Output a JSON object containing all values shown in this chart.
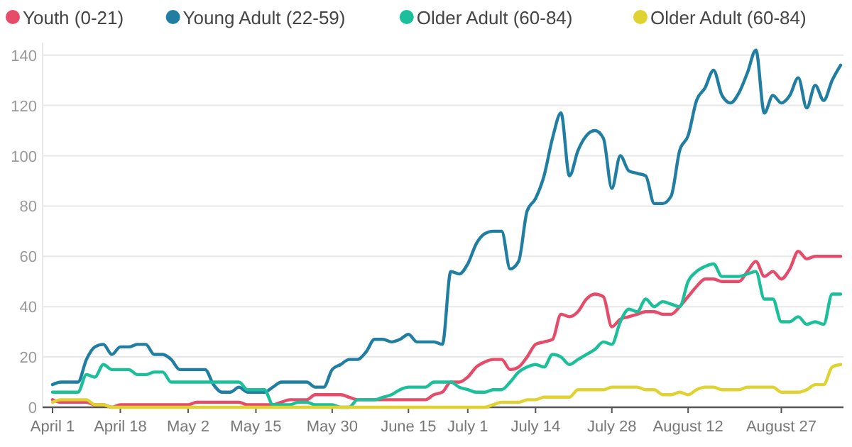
{
  "chart_data": {
    "type": "line",
    "legend": "top",
    "grid": "y",
    "marker": "none",
    "line_style": "solid",
    "ylim": [
      0,
      145
    ],
    "yticks": [
      0,
      20,
      40,
      60,
      80,
      100,
      120,
      140
    ],
    "categories": [
      "April 1",
      null,
      null,
      null,
      null,
      null,
      null,
      null,
      "April 18",
      null,
      null,
      null,
      null,
      null,
      null,
      null,
      "May 2",
      null,
      null,
      null,
      null,
      null,
      null,
      null,
      "May 15",
      null,
      null,
      null,
      null,
      null,
      null,
      null,
      null,
      "May 30",
      null,
      null,
      null,
      null,
      null,
      null,
      null,
      null,
      "June 15",
      null,
      null,
      null,
      null,
      null,
      null,
      "July 1",
      null,
      null,
      null,
      null,
      null,
      null,
      null,
      "July 14",
      null,
      null,
      null,
      null,
      null,
      null,
      null,
      null,
      "July 28",
      null,
      null,
      null,
      null,
      null,
      null,
      null,
      null,
      "August 12",
      null,
      null,
      null,
      null,
      null,
      null,
      null,
      null,
      null,
      null,
      "August 27",
      null,
      null,
      null,
      null,
      null,
      null,
      null
    ],
    "series": [
      {
        "name": "Youth (0-21)",
        "color": "#e64c6a",
        "values": [
          3,
          2,
          2,
          2,
          2,
          1,
          1,
          0,
          1,
          1,
          1,
          1,
          1,
          1,
          1,
          1,
          1,
          2,
          2,
          2,
          2,
          2,
          2,
          1,
          1,
          1,
          1,
          2,
          3,
          3,
          3,
          5,
          5,
          5,
          5,
          4,
          3,
          3,
          3,
          3,
          3,
          3,
          3,
          3,
          3,
          5,
          6,
          10,
          10,
          12,
          16,
          18,
          19,
          19,
          15,
          16,
          20,
          25,
          26,
          27,
          37,
          36,
          38,
          43,
          45,
          44,
          32,
          35,
          36,
          37,
          38,
          38,
          37,
          37,
          40,
          44,
          48,
          51,
          51,
          50,
          50,
          50,
          54,
          58,
          52,
          54,
          51,
          55,
          62,
          59,
          60,
          60,
          60,
          60
        ]
      },
      {
        "name": "Young Adult (22-59)",
        "color": "#1f7ea1",
        "values": [
          9,
          10,
          10,
          10,
          19,
          24,
          25,
          21,
          24,
          24,
          25,
          25,
          21,
          21,
          19,
          15,
          15,
          15,
          15,
          9,
          6,
          6,
          8,
          6,
          6,
          6,
          8,
          10,
          10,
          10,
          10,
          8,
          8,
          15,
          17,
          19,
          19,
          22,
          27,
          27,
          26,
          27,
          29,
          26,
          26,
          26,
          25,
          54,
          53,
          57,
          65,
          69,
          70,
          70,
          55,
          58,
          78,
          83,
          92,
          107,
          117,
          92,
          102,
          108,
          110,
          107,
          87,
          100,
          94,
          93,
          92,
          81,
          81,
          84,
          102,
          108,
          122,
          127,
          134,
          124,
          121,
          125,
          133,
          142,
          117,
          124,
          121,
          124,
          131,
          119,
          128,
          122,
          130,
          136
        ]
      },
      {
        "name": "Older Adult (60-84)",
        "color": "#1bbf9a",
        "values": [
          6,
          6,
          6,
          6,
          13,
          12,
          17,
          15,
          15,
          15,
          13,
          13,
          14,
          14,
          10,
          10,
          10,
          10,
          10,
          10,
          10,
          10,
          10,
          7,
          7,
          7,
          1,
          1,
          1,
          2,
          2,
          1,
          1,
          1,
          0,
          0,
          3,
          3,
          3,
          4,
          5,
          7,
          8,
          8,
          8,
          10,
          10,
          10,
          8,
          7,
          6,
          6,
          7,
          7,
          10,
          14,
          16,
          17,
          16,
          21,
          20,
          17,
          19,
          21,
          23,
          26,
          25,
          34,
          39,
          38,
          43,
          40,
          42,
          41,
          40,
          50,
          54,
          56,
          57,
          52,
          52,
          52,
          53,
          54,
          43,
          43,
          34,
          34,
          36,
          33,
          34,
          33,
          45,
          45
        ]
      },
      {
        "name": "Older Adult (60-84)",
        "color": "#e0d230",
        "values": [
          2,
          3,
          3,
          3,
          3,
          1,
          1,
          0,
          0,
          0,
          0,
          0,
          0,
          0,
          0,
          0,
          0,
          0,
          0,
          0,
          0,
          0,
          0,
          0,
          0,
          0,
          0,
          0,
          0,
          0,
          0,
          0,
          0,
          0,
          0,
          0,
          0,
          0,
          0,
          0,
          0,
          0,
          0,
          0,
          0,
          0,
          0,
          0,
          0,
          0,
          0,
          0,
          1,
          2,
          2,
          2,
          3,
          3,
          4,
          4,
          4,
          4,
          7,
          7,
          7,
          7,
          8,
          8,
          8,
          8,
          7,
          7,
          5,
          5,
          6,
          5,
          7,
          8,
          8,
          7,
          7,
          7,
          8,
          8,
          8,
          8,
          6,
          6,
          6,
          7,
          9,
          9,
          16,
          17
        ]
      }
    ]
  }
}
